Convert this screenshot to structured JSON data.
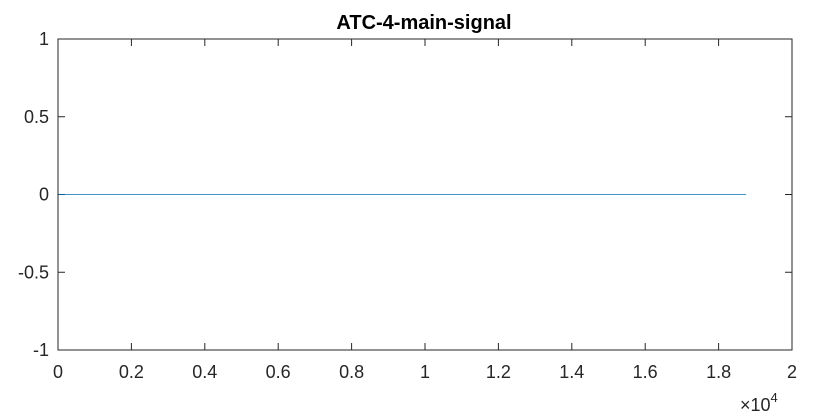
{
  "chart_data": {
    "type": "line",
    "title": "ATC-4-main-signal",
    "xlabel": "",
    "ylabel": "",
    "xlim": [
      0,
      20000
    ],
    "ylim": [
      -1,
      1
    ],
    "x_ticks": [
      0,
      2000,
      4000,
      6000,
      8000,
      10000,
      12000,
      14000,
      16000,
      18000,
      20000
    ],
    "x_tick_labels": [
      "0",
      "0.2",
      "0.4",
      "0.6",
      "0.8",
      "1",
      "1.2",
      "1.4",
      "1.6",
      "1.8",
      "2"
    ],
    "x_multiplier": {
      "base": "×10",
      "exponent": "4"
    },
    "y_ticks": [
      -1,
      -0.5,
      0,
      0.5,
      1
    ],
    "y_tick_labels": [
      "-1",
      "-0.5",
      "0",
      "0.5",
      "1"
    ],
    "grid": false,
    "series": [
      {
        "color": "#0072BD",
        "x": [
          0,
          18750
        ],
        "y": [
          0,
          0
        ]
      }
    ]
  }
}
